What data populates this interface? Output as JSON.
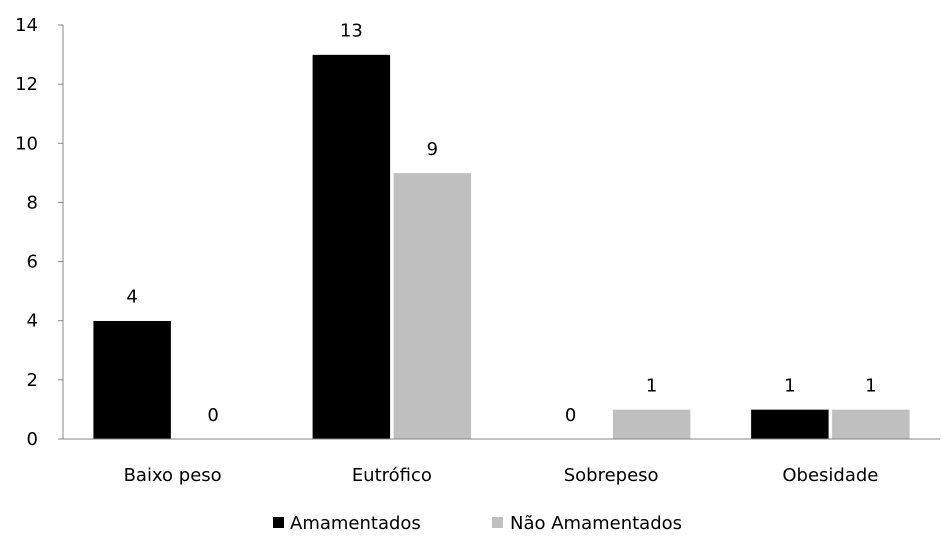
{
  "chart_data": {
    "type": "bar",
    "categories": [
      "Baixo peso",
      "Eutrófico",
      "Sobrepeso",
      "Obesidade"
    ],
    "series": [
      {
        "name": "Amamentados",
        "values": [
          4,
          13,
          0,
          1
        ],
        "color": "#000000"
      },
      {
        "name": "Não Amamentados",
        "values": [
          0,
          9,
          1,
          1
        ],
        "color": "#bfbfbf"
      }
    ],
    "ylim": [
      0,
      14
    ],
    "yticks": [
      0,
      2,
      4,
      6,
      8,
      10,
      12,
      14
    ],
    "grid": false,
    "data_labels": true,
    "legend_position": "bottom"
  }
}
